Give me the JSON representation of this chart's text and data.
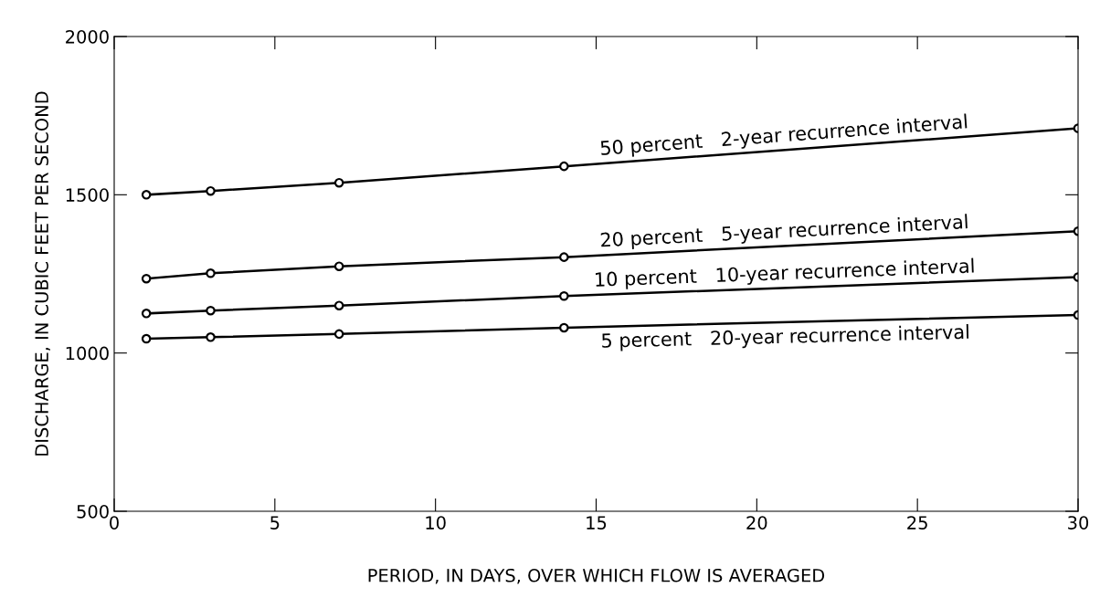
{
  "chart_data": {
    "type": "line",
    "xlabel": "PERIOD, IN DAYS, OVER WHICH FLOW IS AVERAGED",
    "ylabel": "DISCHARGE, IN CUBIC FEET PER SECOND",
    "x": [
      1,
      3,
      7,
      14,
      30
    ],
    "series": [
      {
        "name": "50 percent   2-year recurrence interval",
        "color": "#000000",
        "values": [
          1500,
          1512,
          1538,
          1590,
          1710
        ]
      },
      {
        "name": "20 percent   5-year recurrence interval",
        "color": "#000000",
        "values": [
          1235,
          1252,
          1274,
          1303,
          1385
        ]
      },
      {
        "name": "10 percent   10-year recurrence interval",
        "color": "#000000",
        "values": [
          1125,
          1134,
          1150,
          1180,
          1240
        ]
      },
      {
        "name": "5 percent   20-year recurrence interval",
        "color": "#000000",
        "values": [
          1045,
          1050,
          1060,
          1080,
          1120
        ]
      }
    ],
    "xlim": [
      0,
      30
    ],
    "xticks": [
      0,
      5,
      10,
      15,
      20,
      25,
      30
    ],
    "ylim": [
      500,
      2000
    ],
    "yticks": [
      500,
      1000,
      1500,
      2000
    ],
    "marker": "circle",
    "line_style": "solid",
    "grid": false,
    "legend": false
  }
}
